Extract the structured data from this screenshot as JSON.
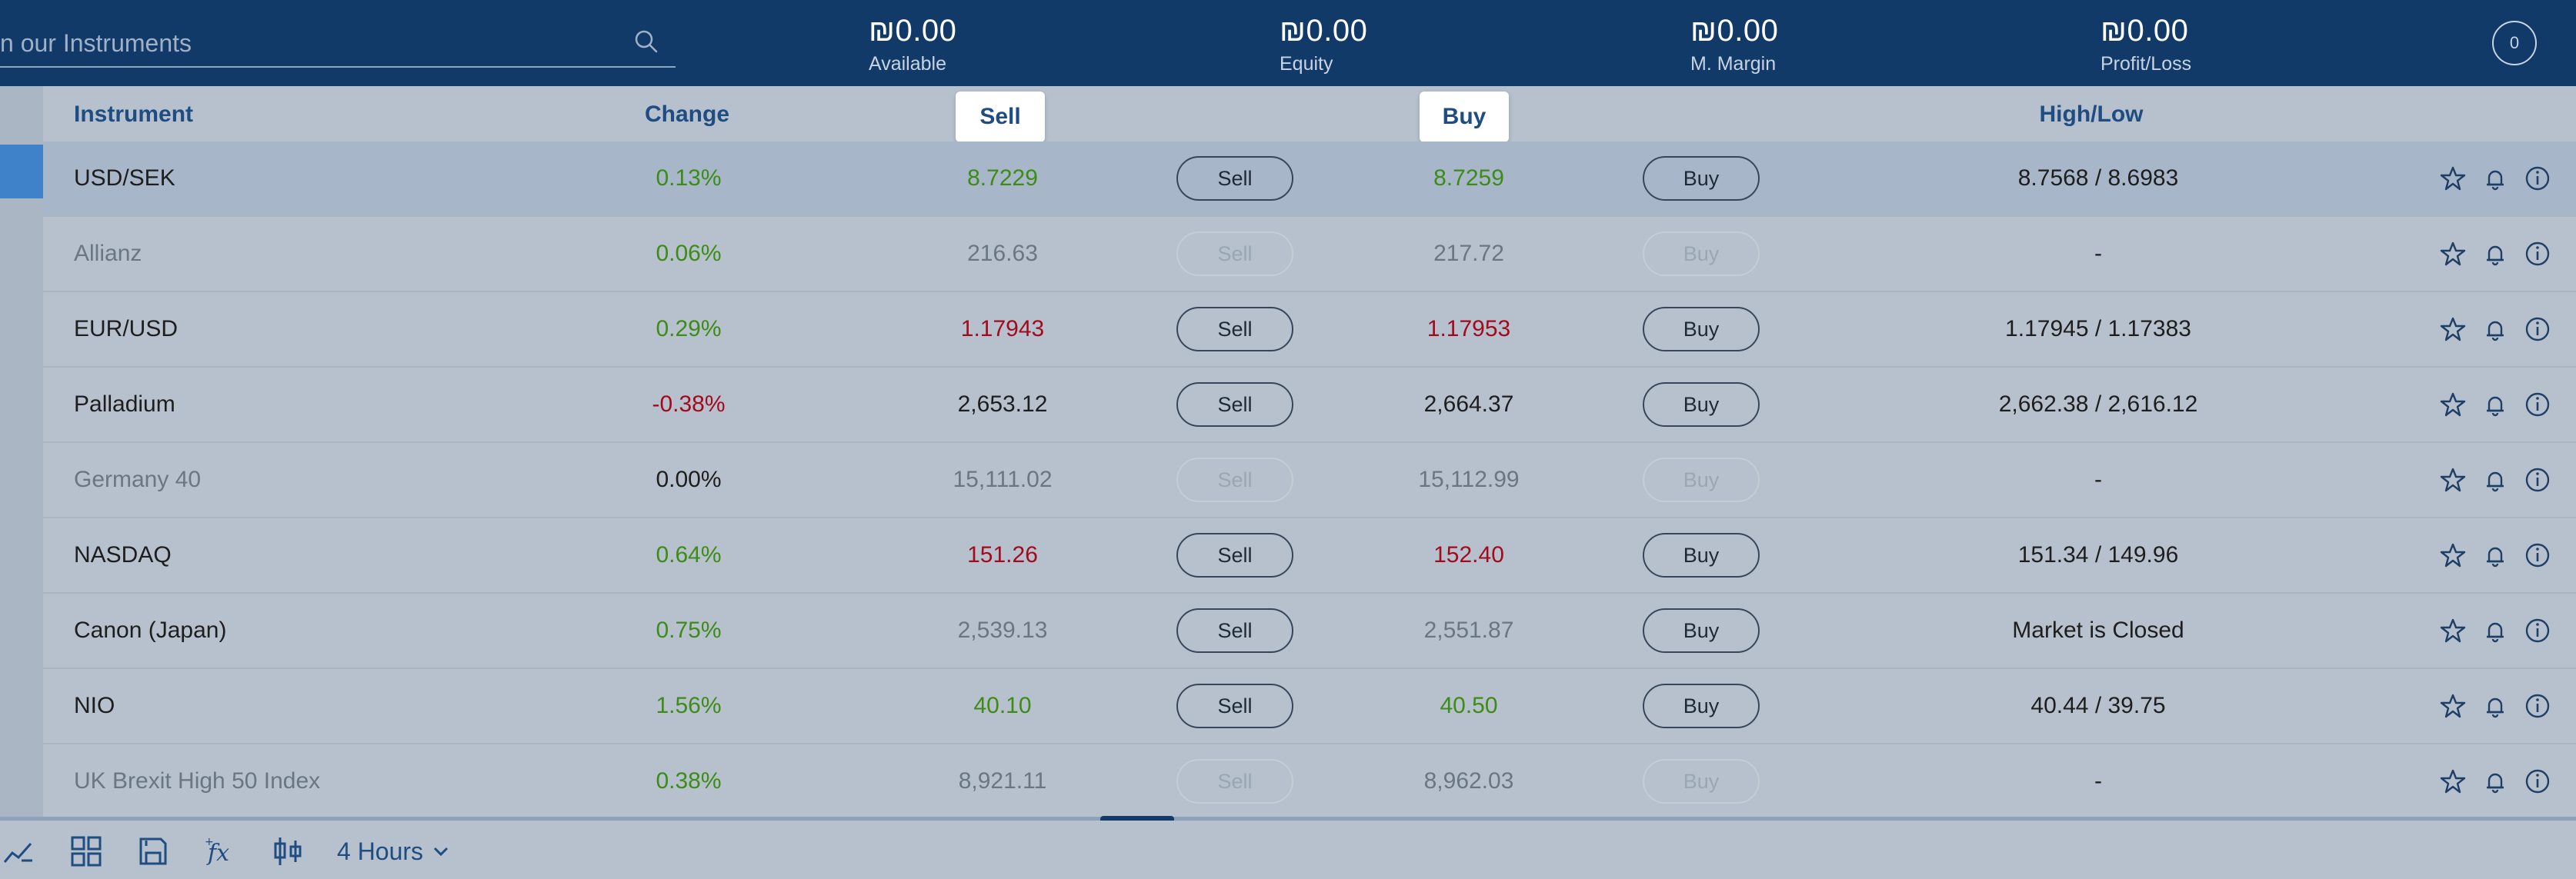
{
  "topbar": {
    "search_placeholder": "n our Instruments",
    "metrics": [
      {
        "value": "₪0.00",
        "label": "Available"
      },
      {
        "value": "₪0.00",
        "label": "Equity"
      },
      {
        "value": "₪0.00",
        "label": "M. Margin"
      },
      {
        "value": "₪0.00",
        "label": "Profit/Loss"
      }
    ],
    "notifications_count": "0"
  },
  "columns": {
    "instrument": "Instrument",
    "change": "Change",
    "sell": "Sell",
    "buy": "Buy",
    "high_low": "High/Low"
  },
  "buttons": {
    "sell": "Sell",
    "buy": "Buy"
  },
  "rows": [
    {
      "name": "USD/SEK",
      "change": "0.13%",
      "sell": "8.7229",
      "buy": "8.7259",
      "high_low": "8.7568 / 8.6983"
    },
    {
      "name": "Allianz",
      "change": "0.06%",
      "sell": "216.63",
      "buy": "217.72",
      "high_low": "-"
    },
    {
      "name": "EUR/USD",
      "change": "0.29%",
      "sell": "1.17943",
      "buy": "1.17953",
      "high_low": "1.17945 / 1.17383"
    },
    {
      "name": "Palladium",
      "change": "-0.38%",
      "sell": "2,653.12",
      "buy": "2,664.37",
      "high_low": "2,662.38 / 2,616.12"
    },
    {
      "name": "Germany 40",
      "change": "0.00%",
      "sell": "15,111.02",
      "buy": "15,112.99",
      "high_low": "-"
    },
    {
      "name": "NASDAQ",
      "change": "0.64%",
      "sell": "151.26",
      "buy": "152.40",
      "high_low": "151.34 / 149.96"
    },
    {
      "name": "Canon (Japan)",
      "change": "0.75%",
      "sell": "2,539.13",
      "buy": "2,551.87",
      "high_low": "Market is Closed"
    },
    {
      "name": "NIO",
      "change": "1.56%",
      "sell": "40.10",
      "buy": "40.50",
      "high_low": "40.44 / 39.75"
    },
    {
      "name": "UK Brexit High 50 Index",
      "change": "0.38%",
      "sell": "8,921.11",
      "buy": "8,962.03",
      "high_low": "-"
    }
  ],
  "toolbar": {
    "timeframe": "4 Hours",
    "icons": [
      "trend-line-icon",
      "grid-layout-icon",
      "save-icon",
      "function-icon",
      "candlestick-icon"
    ]
  },
  "colors": {
    "header_bg": "#123a68",
    "positive": "#3c8c15",
    "negative": "#a30b1d",
    "accent": "#3f82c9"
  }
}
